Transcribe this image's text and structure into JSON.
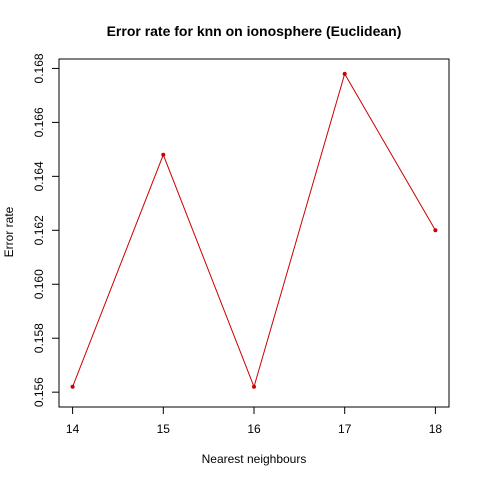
{
  "chart_data": {
    "type": "line",
    "title": "Error rate for knn on ionosphere (Euclidean)",
    "xlabel": "Nearest neighbours",
    "ylabel": "Error rate",
    "x": [
      14,
      15,
      16,
      17,
      18
    ],
    "xticks": [
      "14",
      "15",
      "16",
      "17",
      "18"
    ],
    "series": [
      {
        "values": [
          0.1562,
          0.1648,
          0.1562,
          0.1678,
          0.162
        ],
        "color": "#cc0000"
      }
    ],
    "yticks": [
      "0.156",
      "0.158",
      "0.160",
      "0.162",
      "0.164",
      "0.166",
      "0.168"
    ],
    "xlim": [
      13.85,
      18.15
    ],
    "ylim": [
      0.15545,
      0.16835
    ],
    "grid": false,
    "legend": "none"
  }
}
